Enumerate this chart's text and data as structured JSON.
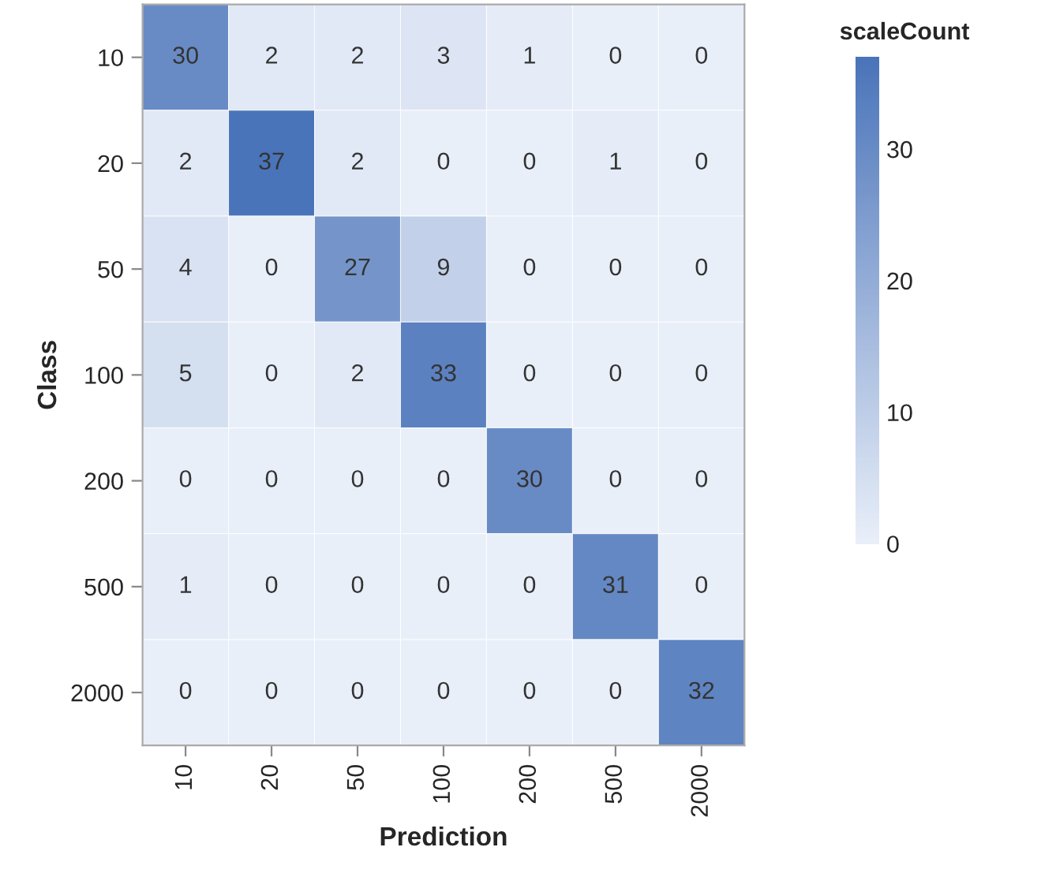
{
  "chart_data": {
    "type": "heatmap",
    "xlabel": "Prediction",
    "ylabel": "Class",
    "clabel": "scaleCount",
    "categories": [
      "10",
      "20",
      "50",
      "100",
      "200",
      "500",
      "2000"
    ],
    "y_categories": [
      "10",
      "20",
      "50",
      "100",
      "200",
      "500",
      "2000"
    ],
    "cells": [
      [
        30,
        2,
        2,
        3,
        1,
        0,
        0
      ],
      [
        2,
        37,
        2,
        0,
        0,
        1,
        0
      ],
      [
        4,
        0,
        27,
        9,
        0,
        0,
        0
      ],
      [
        5,
        0,
        2,
        33,
        0,
        0,
        0
      ],
      [
        0,
        0,
        0,
        0,
        30,
        0,
        0
      ],
      [
        1,
        0,
        0,
        0,
        0,
        31,
        0
      ],
      [
        0,
        0,
        0,
        0,
        0,
        0,
        32
      ]
    ],
    "clim": [
      0,
      37
    ],
    "cticks": [
      0,
      10,
      20,
      30
    ],
    "colors": [
      "#e9eff9",
      "#4a74b9"
    ],
    "data_labels": true
  }
}
